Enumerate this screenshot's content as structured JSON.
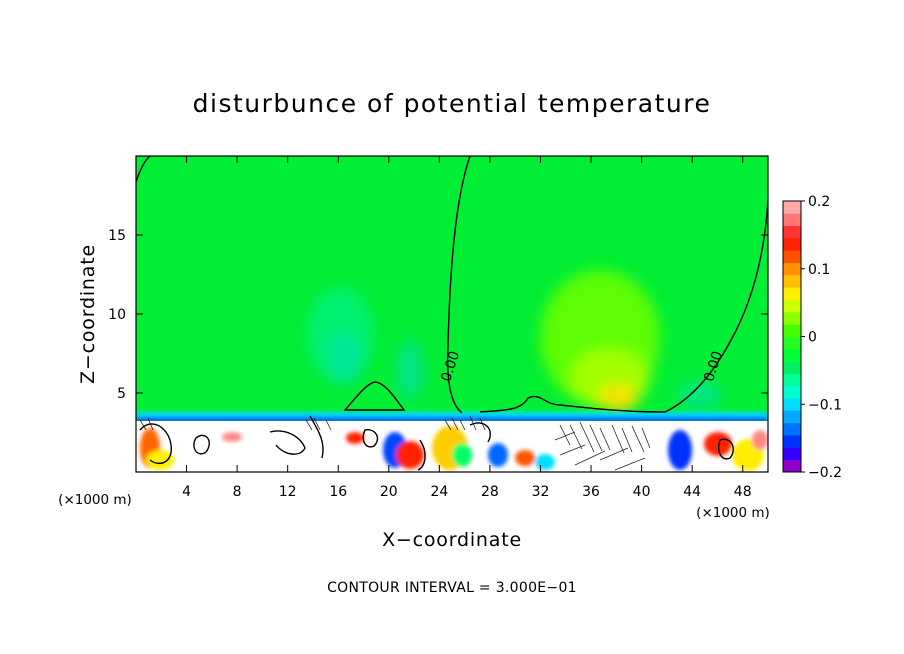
{
  "chart_data": {
    "type": "heatmap",
    "title": "disturbunce of potential temperature",
    "xlabel": "X−coordinate",
    "ylabel": "Z−coordinate",
    "x_unit": "(×1000 m)",
    "y_unit": "(×1000 m)",
    "xlim": [
      0,
      50
    ],
    "ylim": [
      0,
      20
    ],
    "x_ticks": [
      4,
      8,
      12,
      16,
      20,
      24,
      28,
      32,
      36,
      40,
      44,
      48
    ],
    "x_tick_labels": [
      "4",
      "8",
      "12",
      "16",
      "20",
      "24",
      "28",
      "32",
      "36",
      "40",
      "44",
      "48"
    ],
    "y_ticks": [
      5,
      10,
      15
    ],
    "y_tick_labels": [
      "5",
      "10",
      "15"
    ],
    "colorbar": {
      "vmin": -0.2,
      "vmax": 0.2,
      "ticks": [
        0.2,
        0.1,
        0,
        -0.1,
        -0.2
      ],
      "tick_labels": [
        "0.2",
        "0.1",
        "0",
        "−0.1",
        "−0.2"
      ],
      "colors": [
        "#8f00cc",
        "#3300ff",
        "#0033ff",
        "#0073ff",
        "#00a8ff",
        "#00ddff",
        "#00ffd0",
        "#00ff99",
        "#00f060",
        "#00ff33",
        "#22ff22",
        "#44ff00",
        "#8cff00",
        "#ccff00",
        "#ffee00",
        "#ffc000",
        "#ff9000",
        "#ff5000",
        "#ff2200",
        "#ff3333",
        "#ff7777",
        "#ffaaaa"
      ]
    },
    "contour_labels": [
      {
        "text": "0.00",
        "x": 25.2,
        "y": 6.6
      },
      {
        "text": "0.00",
        "x": 46.0,
        "y": 6.6
      }
    ],
    "contour_interval_text": "CONTOUR INTERVAL = 3.000E−01"
  }
}
